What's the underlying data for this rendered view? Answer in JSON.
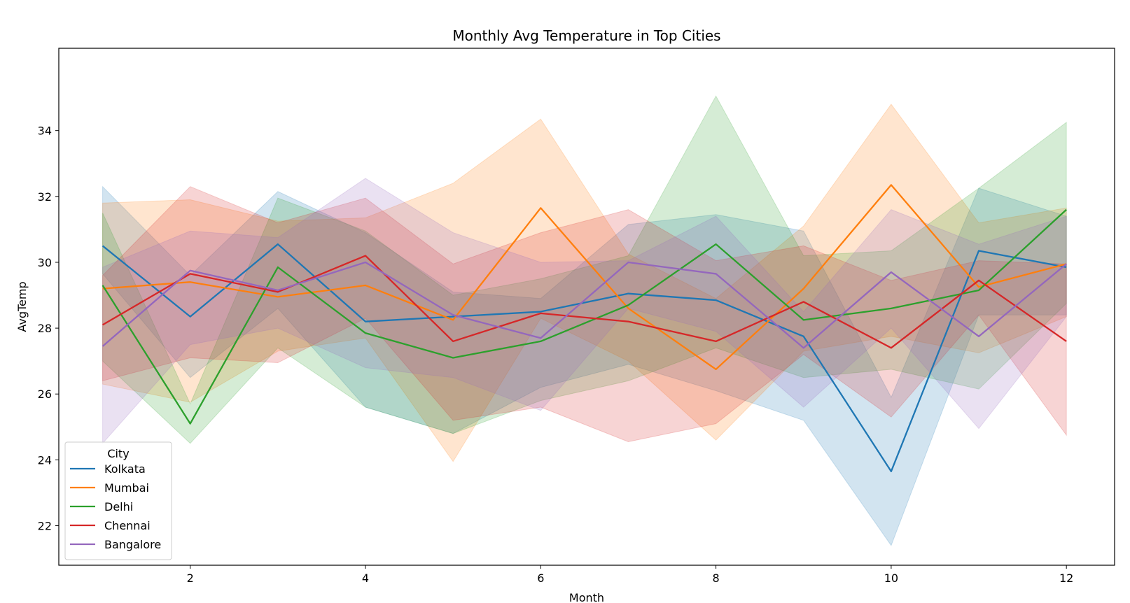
{
  "chart_data": {
    "type": "line",
    "title": "Monthly Avg Temperature in Top Cities",
    "xlabel": "Month",
    "ylabel": "AvgTemp",
    "xlim": [
      0.5,
      12.55
    ],
    "ylim": [
      20.8,
      36.5
    ],
    "xticks": [
      2,
      4,
      6,
      8,
      10,
      12
    ],
    "yticks": [
      22,
      24,
      26,
      28,
      30,
      32,
      34
    ],
    "grid": false,
    "legend": {
      "title": "City",
      "placement": "lower-left"
    },
    "x": [
      1,
      2,
      3,
      4,
      5,
      6,
      7,
      8,
      9,
      10,
      11,
      12
    ],
    "series": [
      {
        "name": "Kolkata",
        "color": "#1f77b4",
        "values": [
          30.5,
          28.35,
          30.55,
          28.2,
          28.35,
          28.5,
          29.05,
          28.85,
          27.75,
          23.65,
          30.35,
          29.85
        ],
        "ci_low": [
          29.65,
          26.5,
          28.6,
          25.6,
          24.8,
          26.2,
          26.9,
          26.1,
          25.2,
          21.4,
          28.4,
          28.4
        ],
        "ci_high": [
          32.3,
          29.6,
          32.15,
          30.9,
          29.1,
          28.9,
          31.15,
          31.45,
          30.95,
          25.9,
          32.25,
          31.4
        ]
      },
      {
        "name": "Mumbai",
        "color": "#ff7f0e",
        "values": [
          29.2,
          29.4,
          28.95,
          29.3,
          28.25,
          31.65,
          28.6,
          26.75,
          29.2,
          32.35,
          29.25,
          29.95
        ],
        "ci_low": [
          26.3,
          25.75,
          27.3,
          27.7,
          23.95,
          28.3,
          27.0,
          24.6,
          27.3,
          27.75,
          27.25,
          28.35
        ],
        "ci_high": [
          31.8,
          31.9,
          31.25,
          31.35,
          32.4,
          34.35,
          30.25,
          28.9,
          31.1,
          34.8,
          31.2,
          31.65
        ]
      },
      {
        "name": "Delhi",
        "color": "#2ca02c",
        "values": [
          29.3,
          25.1,
          29.85,
          27.85,
          27.1,
          27.6,
          28.7,
          30.55,
          28.25,
          28.6,
          29.15,
          31.6
        ],
        "ci_low": [
          27.0,
          24.5,
          27.4,
          25.6,
          24.8,
          25.8,
          26.4,
          27.4,
          26.5,
          26.75,
          26.15,
          28.75
        ],
        "ci_high": [
          31.5,
          25.7,
          31.95,
          30.95,
          29.0,
          29.5,
          30.2,
          35.05,
          30.2,
          30.35,
          32.25,
          34.25
        ]
      },
      {
        "name": "Chennai",
        "color": "#d62728",
        "values": [
          28.1,
          29.65,
          29.1,
          30.2,
          27.6,
          28.45,
          28.2,
          27.6,
          28.8,
          27.4,
          29.45,
          27.6
        ],
        "ci_low": [
          26.4,
          27.1,
          26.95,
          28.3,
          25.2,
          25.6,
          24.55,
          25.1,
          27.2,
          25.3,
          28.4,
          24.75
        ],
        "ci_high": [
          29.6,
          32.3,
          31.2,
          31.95,
          29.95,
          30.9,
          31.6,
          30.05,
          30.5,
          29.45,
          30.05,
          29.95
        ]
      },
      {
        "name": "Bangalore",
        "color": "#9467bd",
        "values": [
          27.45,
          29.75,
          29.15,
          30.0,
          28.4,
          27.7,
          30.0,
          29.65,
          27.4,
          29.7,
          27.75,
          29.95
        ],
        "ci_low": [
          24.5,
          27.5,
          28.0,
          26.8,
          26.5,
          25.5,
          28.6,
          27.9,
          25.6,
          28.0,
          24.95,
          28.35
        ],
        "ci_high": [
          29.85,
          30.95,
          30.75,
          32.55,
          30.9,
          30.0,
          30.05,
          31.4,
          28.5,
          31.6,
          30.55,
          31.4
        ]
      }
    ]
  }
}
